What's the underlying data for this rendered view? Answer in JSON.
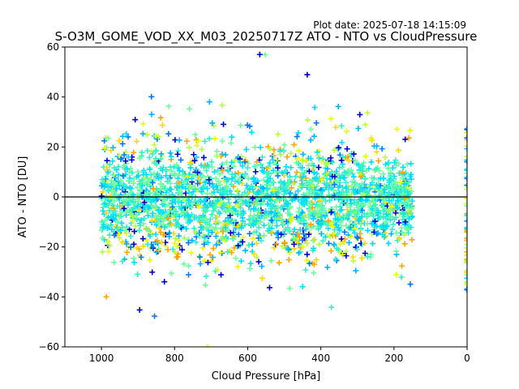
{
  "figure": {
    "plot_date": "Plot date: 2025-07-18 14:15:09"
  },
  "chart_data": {
    "type": "scatter",
    "title": "S-O3M_GOME_VOD_XX_M03_20250717Z ATO - NTO vs CloudPressure",
    "xlabel": "Cloud Pressure [hPa]",
    "ylabel": "ATO - NTO [DU]",
    "xlim": [
      1100,
      0
    ],
    "ylim": [
      -60,
      60
    ],
    "x_inverted": true,
    "grid": false,
    "legend": "none",
    "xticks": [
      1000,
      800,
      600,
      400,
      200,
      0
    ],
    "xtick_labels": [
      "1000",
      "800",
      "600",
      "400",
      "200",
      "0"
    ],
    "yticks": [
      -60,
      -40,
      -20,
      0,
      20,
      40,
      60
    ],
    "ytick_labels": [
      "−60",
      "−40",
      "−20",
      "0",
      "20",
      "40",
      "60"
    ],
    "reference_line_y": 0,
    "marker": "plus",
    "colors": [
      "#0000cd",
      "#0078ff",
      "#00b4ff",
      "#00dcff",
      "#32f0c8",
      "#6eff9b",
      "#b4ff3c",
      "#e6ff00",
      "#ffd700",
      "#ffa500"
    ],
    "distribution": {
      "main_cluster": {
        "x_range": [
          1000,
          150
        ],
        "core_y_range": [
          -20,
          20
        ],
        "spread_y_range": [
          -60,
          57
        ],
        "dominant_colors": [
          "#6eff9b",
          "#32f0c8",
          "#00dcff"
        ]
      },
      "edge_column": {
        "x": 0,
        "y_range": [
          -38,
          28
        ]
      }
    }
  }
}
